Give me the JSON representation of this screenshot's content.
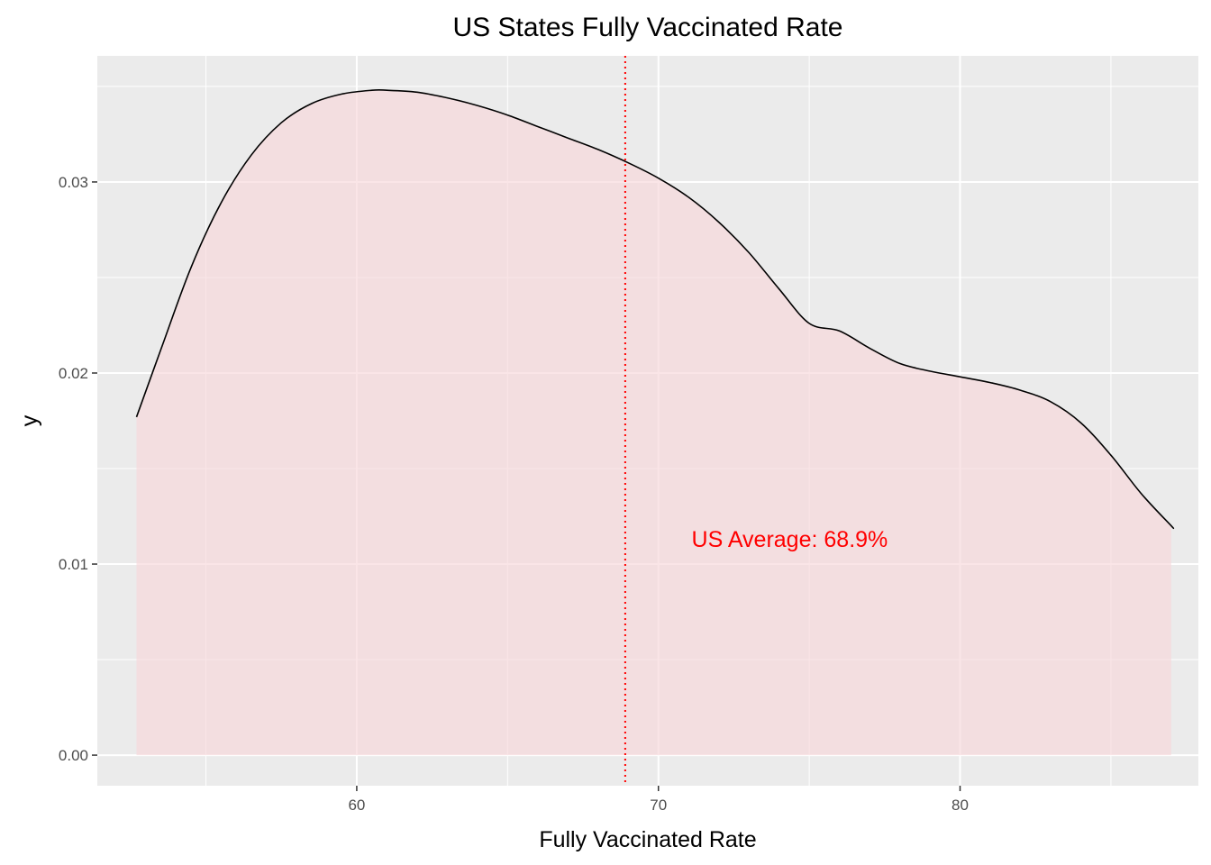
{
  "chart_data": {
    "type": "area",
    "title": "US States Fully Vaccinated Rate",
    "xlabel": "Fully Vaccinated Rate",
    "ylabel": "y",
    "xlim": [
      51.4,
      87.9
    ],
    "ylim": [
      -0.0016,
      0.0366
    ],
    "x_ticks": [
      60,
      70,
      80
    ],
    "x_tick_labels": [
      "60",
      "70",
      "80"
    ],
    "x_minor_ticks": [
      55,
      65,
      75,
      85
    ],
    "y_ticks": [
      0.0,
      0.01,
      0.02,
      0.03
    ],
    "y_tick_labels": [
      "0.00",
      "0.01",
      "0.02",
      "0.03"
    ],
    "y_minor_ticks": [
      0.005,
      0.015,
      0.025,
      0.035
    ],
    "grid": true,
    "series": [
      {
        "x": [
          52.7,
          53.5,
          54.5,
          55.5,
          56.5,
          57.5,
          58.5,
          59.5,
          60.5,
          61.0,
          62.0,
          63.0,
          64.0,
          65.0,
          66.0,
          67.0,
          68.0,
          69.0,
          70.0,
          71.0,
          72.0,
          73.0,
          74.0,
          75.0,
          76.0,
          77.0,
          78.0,
          79.0,
          80.0,
          81.0,
          82.0,
          83.0,
          84.0,
          85.0,
          86.0,
          87.0,
          87.0
        ],
        "y": [
          0.0177,
          0.0212,
          0.0255,
          0.0289,
          0.0314,
          0.0331,
          0.0341,
          0.0346,
          0.0348,
          0.0348,
          0.0347,
          0.0344,
          0.034,
          0.0335,
          0.0329,
          0.0323,
          0.0317,
          0.031,
          0.0302,
          0.0292,
          0.0279,
          0.0263,
          0.0244,
          0.0226,
          0.0222,
          0.0213,
          0.0205,
          0.0201,
          0.0198,
          0.0195,
          0.0191,
          0.0185,
          0.0174,
          0.0157,
          0.0137,
          0.012,
          0.012
        ]
      }
    ],
    "colors": {
      "panel_bg": "#ebebeb",
      "grid": "#ffffff",
      "fill": "#f8d7da",
      "fill_opacity": 0.65,
      "line": "#000000",
      "vline": "#ff0000",
      "annotation": "#ff0000"
    },
    "vline": {
      "x": 68.9,
      "style": "dotted"
    },
    "annotation": {
      "text": "US Average: 68.9%",
      "x": 71.1,
      "y": 0.0109
    }
  }
}
